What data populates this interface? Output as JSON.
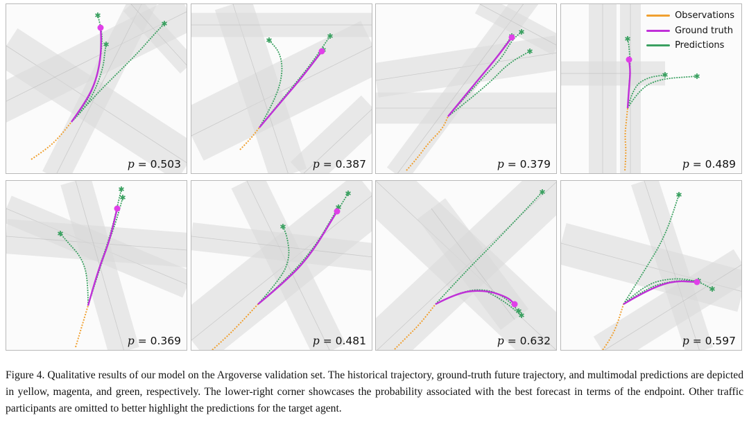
{
  "colors": {
    "observations": "#f0a030",
    "ground_truth": "#c030d8",
    "predictions": "#3aa060",
    "endpoint": "#e040e8",
    "road": "#d9d9d9",
    "road_edge": "#bdbdbd"
  },
  "legend": {
    "items": [
      {
        "label": "Observations",
        "color": "#f0a030"
      },
      {
        "label": "Ground truth",
        "color": "#c030d8"
      },
      {
        "label": "Predictions",
        "color": "#3aa060"
      }
    ]
  },
  "panels": [
    {
      "p_label": "p",
      "p_value": "= 0.503"
    },
    {
      "p_label": "p",
      "p_value": "= 0.387"
    },
    {
      "p_label": "p",
      "p_value": "= 0.379"
    },
    {
      "p_label": "p",
      "p_value": "= 0.489"
    },
    {
      "p_label": "p",
      "p_value": "= 0.369"
    },
    {
      "p_label": "p",
      "p_value": "= 0.481"
    },
    {
      "p_label": "p",
      "p_value": "= 0.632"
    },
    {
      "p_label": "p",
      "p_value": "= 0.597"
    }
  ],
  "caption": {
    "text": "Figure 4. Qualitative results of our model on the Argoverse validation set. The historical trajectory, ground-truth future trajectory, and multimodal predictions are depicted in yellow, magenta, and green, respectively. The lower-right corner showcases the probability associated with the best forecast in terms of the endpoint. Other traffic participants are omitted to better highlight the predictions for the target agent."
  }
}
